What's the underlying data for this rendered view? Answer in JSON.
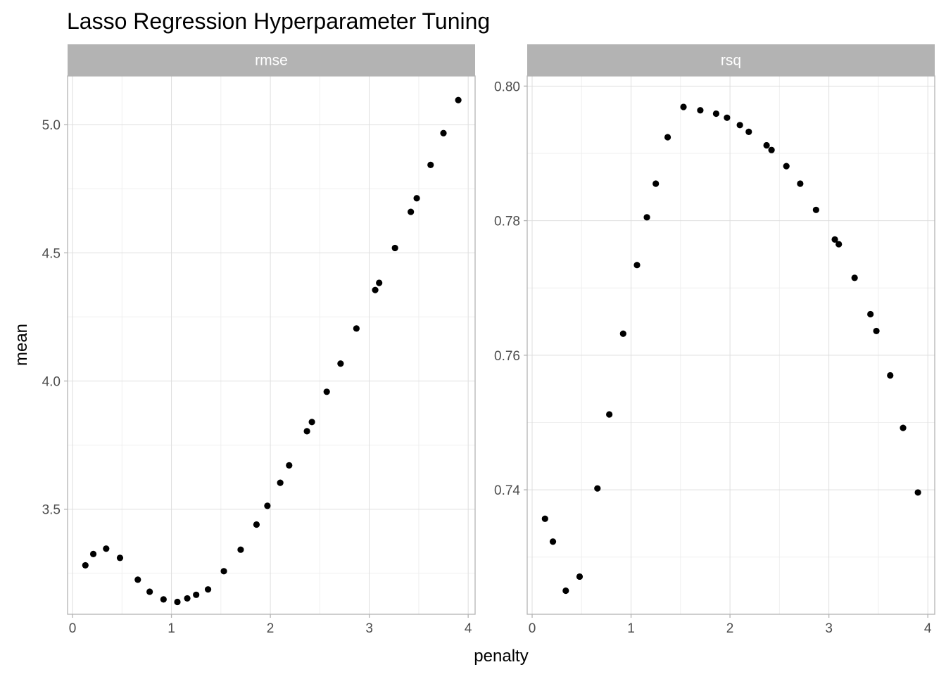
{
  "chart_data": {
    "type": "scatter",
    "title": "Lasso Regression Hyperparameter Tuning",
    "xlabel": "penalty",
    "ylabel": "mean",
    "grid": true,
    "colors": {
      "point": "#000000",
      "strip_bg": "#b3b3b3",
      "strip_text": "#ffffff",
      "grid_major": "#dedede",
      "grid_minor": "#efefef",
      "panel_border": "#b3b3b3",
      "tick_text": "#4d4d4d"
    },
    "facets": [
      {
        "name": "rmse",
        "xlim": [
          -0.05,
          4.07
        ],
        "ylim": [
          3.09,
          5.19
        ],
        "xticks": [
          0,
          1,
          2,
          3,
          4
        ],
        "yticks": [
          3.5,
          4.0,
          4.5,
          5.0
        ],
        "ytick_labels": [
          "3.5",
          "4.0",
          "4.5",
          "5.0"
        ],
        "points": [
          {
            "x": 0.13,
            "y": 3.281
          },
          {
            "x": 0.21,
            "y": 3.325
          },
          {
            "x": 0.34,
            "y": 3.346
          },
          {
            "x": 0.48,
            "y": 3.31
          },
          {
            "x": 0.66,
            "y": 3.225
          },
          {
            "x": 0.78,
            "y": 3.178
          },
          {
            "x": 0.92,
            "y": 3.148
          },
          {
            "x": 1.06,
            "y": 3.138
          },
          {
            "x": 1.16,
            "y": 3.152
          },
          {
            "x": 1.25,
            "y": 3.166
          },
          {
            "x": 1.37,
            "y": 3.187
          },
          {
            "x": 1.53,
            "y": 3.258
          },
          {
            "x": 1.7,
            "y": 3.342
          },
          {
            "x": 1.86,
            "y": 3.44
          },
          {
            "x": 1.97,
            "y": 3.513
          },
          {
            "x": 2.1,
            "y": 3.603
          },
          {
            "x": 2.19,
            "y": 3.671
          },
          {
            "x": 2.37,
            "y": 3.804
          },
          {
            "x": 2.42,
            "y": 3.84
          },
          {
            "x": 2.57,
            "y": 3.958
          },
          {
            "x": 2.71,
            "y": 4.068
          },
          {
            "x": 2.87,
            "y": 4.205
          },
          {
            "x": 3.06,
            "y": 4.355
          },
          {
            "x": 3.1,
            "y": 4.383
          },
          {
            "x": 3.26,
            "y": 4.519
          },
          {
            "x": 3.42,
            "y": 4.66
          },
          {
            "x": 3.48,
            "y": 4.713
          },
          {
            "x": 3.62,
            "y": 4.843
          },
          {
            "x": 3.75,
            "y": 4.967
          },
          {
            "x": 3.9,
            "y": 5.096
          }
        ]
      },
      {
        "name": "rsq",
        "xlim": [
          -0.05,
          4.07
        ],
        "ylim": [
          0.7215,
          0.8015
        ],
        "xticks": [
          0,
          1,
          2,
          3,
          4
        ],
        "yticks": [
          0.74,
          0.76,
          0.78,
          0.8
        ],
        "ytick_labels": [
          "0.74",
          "0.76",
          "0.78",
          "0.80"
        ],
        "points": [
          {
            "x": 0.13,
            "y": 0.7357
          },
          {
            "x": 0.21,
            "y": 0.7323
          },
          {
            "x": 0.34,
            "y": 0.725
          },
          {
            "x": 0.48,
            "y": 0.7271
          },
          {
            "x": 0.66,
            "y": 0.7402
          },
          {
            "x": 0.78,
            "y": 0.7512
          },
          {
            "x": 0.92,
            "y": 0.7632
          },
          {
            "x": 1.06,
            "y": 0.7734
          },
          {
            "x": 1.16,
            "y": 0.7805
          },
          {
            "x": 1.25,
            "y": 0.7855
          },
          {
            "x": 1.37,
            "y": 0.7924
          },
          {
            "x": 1.53,
            "y": 0.7969
          },
          {
            "x": 1.7,
            "y": 0.7964
          },
          {
            "x": 1.86,
            "y": 0.7959
          },
          {
            "x": 1.97,
            "y": 0.7953
          },
          {
            "x": 2.1,
            "y": 0.7942
          },
          {
            "x": 2.19,
            "y": 0.7932
          },
          {
            "x": 2.37,
            "y": 0.7912
          },
          {
            "x": 2.42,
            "y": 0.7905
          },
          {
            "x": 2.57,
            "y": 0.7881
          },
          {
            "x": 2.71,
            "y": 0.7855
          },
          {
            "x": 2.87,
            "y": 0.7816
          },
          {
            "x": 3.06,
            "y": 0.7772
          },
          {
            "x": 3.1,
            "y": 0.7765
          },
          {
            "x": 3.26,
            "y": 0.7715
          },
          {
            "x": 3.42,
            "y": 0.7661
          },
          {
            "x": 3.48,
            "y": 0.7636
          },
          {
            "x": 3.62,
            "y": 0.757
          },
          {
            "x": 3.75,
            "y": 0.7492
          },
          {
            "x": 3.9,
            "y": 0.7396
          }
        ]
      }
    ]
  }
}
